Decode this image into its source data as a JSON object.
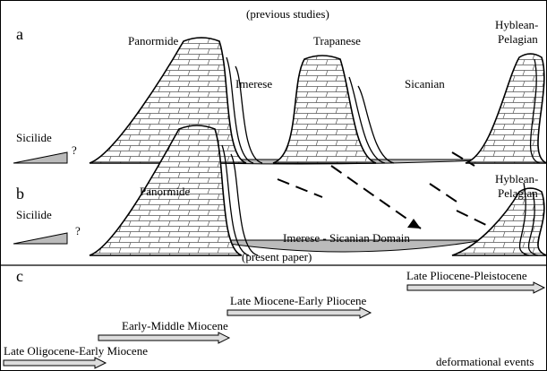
{
  "panel_a": {
    "letter": "a",
    "caption": "(previous studies)",
    "units": [
      "Sicilide",
      "?",
      "Panormide",
      "Imerese",
      "Trapanese",
      "Sicanian",
      "Hyblean-",
      "Pelagian"
    ]
  },
  "panel_b": {
    "letter": "b",
    "caption": "(present paper)",
    "units": [
      "Sicilide",
      "?",
      "Panormide",
      "Imerese - Sicanian Domain",
      "Hyblean-",
      "Pelagian"
    ]
  },
  "panel_c": {
    "letter": "c",
    "events": [
      "Late Oligocene-Early Miocene",
      "Early-Middle Miocene",
      "Late Miocene-Early Pliocene",
      "Late Pliocene-Pleistocene"
    ],
    "footer": "deformational events"
  }
}
